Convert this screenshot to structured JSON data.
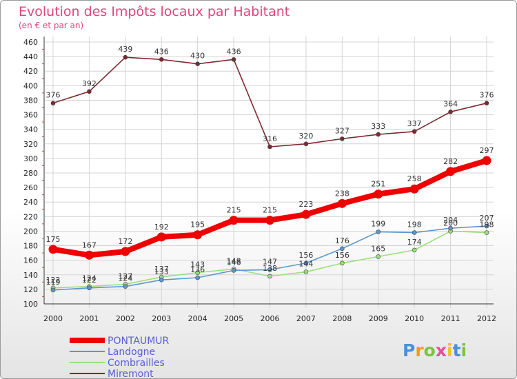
{
  "chart_data": {
    "type": "line",
    "title": "Evolution des Impôts locaux par Habitant",
    "subtitle": "(en € et par an)",
    "xlabel": "",
    "ylabel": "",
    "categories": [
      "2000",
      "2001",
      "2002",
      "2003",
      "2004",
      "2005",
      "2006",
      "2007",
      "2008",
      "2009",
      "2010",
      "2011",
      "2012"
    ],
    "ylim": [
      100,
      460
    ],
    "yticks": [
      100,
      120,
      140,
      160,
      180,
      200,
      220,
      240,
      260,
      280,
      300,
      320,
      340,
      360,
      380,
      400,
      420,
      440,
      460
    ],
    "grid": true,
    "series": [
      {
        "name": "Miremont",
        "color": "#7b2a2f",
        "values": [
          376,
          392,
          439,
          436,
          430,
          436,
          316,
          320,
          327,
          333,
          337,
          364,
          376
        ]
      },
      {
        "name": "Combrailles",
        "color": "#99e07a",
        "values": [
          122,
          124,
          127,
          137,
          143,
          148,
          138,
          144,
          156,
          165,
          174,
          200,
          198
        ]
      },
      {
        "name": "Landogne",
        "color": "#5d97cf",
        "values": [
          119,
          122,
          124,
          133,
          136,
          146,
          147,
          156,
          176,
          199,
          198,
          204,
          207
        ]
      },
      {
        "name": "PONTAUMUR",
        "color": "#ee0000",
        "values": [
          175,
          167,
          172,
          192,
          195,
          215,
          215,
          223,
          238,
          251,
          258,
          282,
          297
        ]
      }
    ],
    "legend_order": [
      "PONTAUMUR",
      "Landogne",
      "Combrailles",
      "Miremont"
    ],
    "legend_position": "bottom-left"
  },
  "logo": {
    "letters": [
      "P",
      "r",
      "o",
      "x",
      "i",
      "t",
      "i"
    ],
    "colors": [
      "#4a8fd8",
      "#f29a1c",
      "#7cc242",
      "#e84c9b",
      "#f2c21c",
      "#4a8fd8",
      "#7cc242"
    ]
  }
}
